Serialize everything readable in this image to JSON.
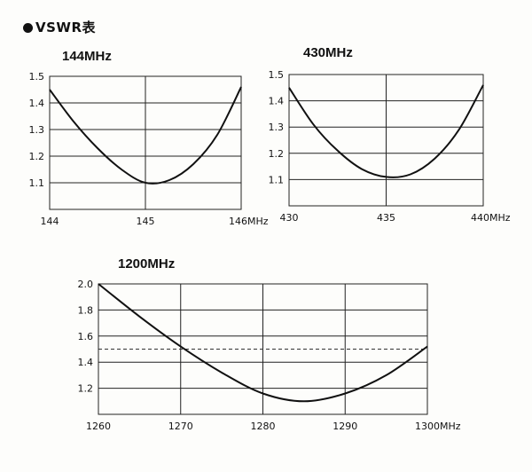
{
  "page": {
    "title": "VSWR表"
  },
  "chart_data": [
    {
      "type": "line",
      "title": "144MHz",
      "x_ticks": [
        "144",
        "145",
        "146MHz"
      ],
      "y_ticks": [
        "1.5",
        "1.4",
        "1.3",
        "1.2",
        "1.1"
      ],
      "xlim": [
        144,
        146
      ],
      "ylim": [
        1.0,
        1.5
      ],
      "grid": true,
      "series": [
        {
          "x": [
            144.0,
            144.25,
            144.5,
            144.75,
            145.0,
            145.25,
            145.5,
            145.75,
            146.0
          ],
          "y": [
            1.45,
            1.33,
            1.23,
            1.15,
            1.1,
            1.11,
            1.17,
            1.28,
            1.46
          ]
        }
      ]
    },
    {
      "type": "line",
      "title": "430MHz",
      "x_ticks": [
        "430",
        "435",
        "440MHz"
      ],
      "y_ticks": [
        "1.5",
        "1.4",
        "1.3",
        "1.2",
        "1.1"
      ],
      "xlim": [
        430,
        440
      ],
      "ylim": [
        1.0,
        1.5
      ],
      "grid": true,
      "series": [
        {
          "x": [
            430,
            431.25,
            432.5,
            433.75,
            435,
            436.25,
            437.5,
            438.75,
            440
          ],
          "y": [
            1.45,
            1.31,
            1.21,
            1.14,
            1.11,
            1.12,
            1.18,
            1.29,
            1.46
          ]
        }
      ]
    },
    {
      "type": "line",
      "title": "1200MHz",
      "x_ticks": [
        "1260",
        "1270",
        "1280",
        "1290",
        "1300MHz"
      ],
      "y_ticks": [
        "2.0",
        "1.8",
        "1.6",
        "1.4",
        "1.2"
      ],
      "xlim": [
        1260,
        1300
      ],
      "ylim": [
        1.0,
        2.0
      ],
      "grid": true,
      "reference_line": {
        "y": 1.5,
        "style": "dashed"
      },
      "series": [
        {
          "x": [
            1260,
            1265,
            1270,
            1275,
            1280,
            1285,
            1290,
            1295,
            1300
          ],
          "y": [
            2.0,
            1.75,
            1.52,
            1.32,
            1.16,
            1.1,
            1.16,
            1.3,
            1.52
          ]
        }
      ]
    }
  ]
}
